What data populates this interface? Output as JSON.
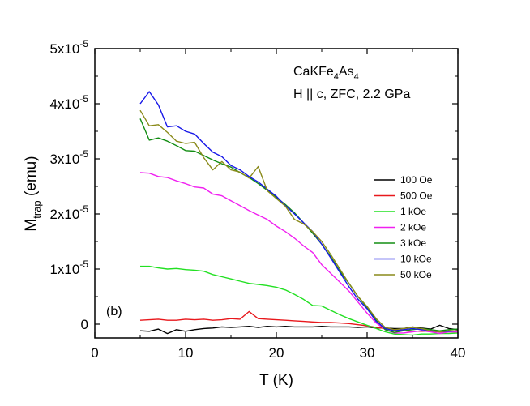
{
  "chart_data": {
    "type": "line",
    "panel_label": "(b)",
    "annotation_lines": [
      {
        "base": "CaKFe",
        "sub1": "4",
        "mid": "As",
        "sub2": "4"
      },
      {
        "text": "H || c, ZFC, 2.2 GPa"
      }
    ],
    "xlabel": "T (K)",
    "ylabel": {
      "main": "M",
      "sub": "trap",
      "rest": " (emu)"
    },
    "xlim": [
      0,
      40
    ],
    "ylim": [
      -2.5e-06,
      5e-05
    ],
    "x_ticks": [
      "0",
      "10",
      "20",
      "30",
      "40"
    ],
    "y_ticks": [
      {
        "value": 0,
        "mantissa": "0",
        "exp": ""
      },
      {
        "value": 1e-05,
        "mantissa": "1x10",
        "exp": "-5"
      },
      {
        "value": 2e-05,
        "mantissa": "2x10",
        "exp": "-5"
      },
      {
        "value": 3e-05,
        "mantissa": "3x10",
        "exp": "-5"
      },
      {
        "value": 4e-05,
        "mantissa": "4x10",
        "exp": "-5"
      },
      {
        "value": 5e-05,
        "mantissa": "5x10",
        "exp": "-5"
      }
    ],
    "legend_position": "center-right",
    "series": [
      {
        "name": "100 Oe",
        "color": "#000000",
        "x": [
          5,
          6,
          7,
          8,
          9,
          10,
          11,
          12,
          13,
          14,
          15,
          16,
          17,
          18,
          19,
          20,
          21,
          22,
          23,
          24,
          25,
          26,
          27,
          28,
          29,
          30,
          31,
          32,
          33,
          34,
          35,
          36,
          37,
          38,
          39,
          40
        ],
        "y": [
          -1.2e-06,
          -1.3e-06,
          -9e-07,
          -1.7e-06,
          -1e-06,
          -1.3e-06,
          -1e-06,
          -8e-07,
          -7e-07,
          -5e-07,
          -6e-07,
          -5e-07,
          -4e-07,
          -6e-07,
          -4e-07,
          -5e-07,
          -4e-07,
          -5e-07,
          -5e-07,
          -5e-07,
          -4e-07,
          -5e-07,
          -5e-07,
          -5e-07,
          -6e-07,
          -5e-07,
          -7e-07,
          -7e-07,
          -8e-07,
          -8e-07,
          -5e-07,
          -7e-07,
          -9e-07,
          -2e-07,
          -8e-07,
          -1e-06
        ]
      },
      {
        "name": "500 Oe",
        "color": "#e8181c",
        "x": [
          5,
          6,
          7,
          8,
          9,
          10,
          11,
          12,
          13,
          14,
          15,
          16,
          17,
          18,
          19,
          20,
          21,
          22,
          23,
          24,
          25,
          26,
          27,
          28,
          29,
          30,
          31,
          32,
          33,
          34,
          35,
          36,
          37,
          38,
          39,
          40
        ],
        "y": [
          7e-07,
          8e-07,
          9e-07,
          7e-07,
          7e-07,
          9e-07,
          8e-07,
          9e-07,
          7e-07,
          8e-07,
          1e-06,
          9e-07,
          2.3e-06,
          1e-06,
          9e-07,
          8e-07,
          7e-07,
          6e-07,
          5e-07,
          4e-07,
          3e-07,
          3e-07,
          2e-07,
          1e-07,
          -1e-07,
          -3e-07,
          -6e-07,
          -8e-07,
          -1e-06,
          -1.2e-06,
          -1.3e-06,
          -1.3e-06,
          -1.3e-06,
          -1.4e-06,
          -1.4e-06,
          -1.4e-06
        ]
      },
      {
        "name": "1 kOe",
        "color": "#22e022",
        "x": [
          5,
          6,
          7,
          8,
          9,
          10,
          11,
          12,
          13,
          14,
          15,
          16,
          17,
          18,
          19,
          20,
          21,
          22,
          23,
          24,
          25,
          26,
          27,
          28,
          29,
          30,
          31,
          32,
          33,
          34,
          35,
          36,
          37,
          38,
          39,
          40
        ],
        "y": [
          1.05e-05,
          1.05e-05,
          1.02e-05,
          1e-05,
          1.01e-05,
          9.9e-06,
          9.8e-06,
          9.6e-06,
          9e-06,
          8.6e-06,
          8.2e-06,
          7.8e-06,
          7.4e-06,
          7.2e-06,
          7e-06,
          6.7e-06,
          6.2e-06,
          5.4e-06,
          4.5e-06,
          3.4e-06,
          3.3e-06,
          2.5e-06,
          1.7e-06,
          1e-06,
          4e-07,
          -2e-07,
          -8e-07,
          -1.4e-06,
          -1.8e-06,
          -1.9e-06,
          -2e-06,
          -1.8e-06,
          -1.8e-06,
          -1.7e-06,
          -1.7e-06,
          -1.6e-06
        ]
      },
      {
        "name": "2 kOe",
        "color": "#f020f0",
        "x": [
          5,
          6,
          7,
          8,
          9,
          10,
          11,
          12,
          13,
          14,
          15,
          16,
          17,
          18,
          19,
          20,
          21,
          22,
          23,
          24,
          25,
          26,
          27,
          28,
          29,
          30,
          31,
          32,
          33,
          34,
          35,
          36,
          37,
          38,
          39,
          40
        ],
        "y": [
          2.75e-05,
          2.74e-05,
          2.68e-05,
          2.66e-05,
          2.6e-05,
          2.55e-05,
          2.49e-05,
          2.47e-05,
          2.36e-05,
          2.33e-05,
          2.24e-05,
          2.15e-05,
          2.06e-05,
          1.98e-05,
          1.9e-05,
          1.78e-05,
          1.68e-05,
          1.56e-05,
          1.42e-05,
          1.3e-05,
          1.08e-05,
          9.2e-06,
          7.6e-06,
          6e-06,
          4e-06,
          2e-06,
          2e-07,
          -1e-06,
          -1.6e-06,
          -1.6e-06,
          -1.4e-06,
          -1.2e-06,
          -1.4e-06,
          -1.7e-06,
          -1.4e-06,
          -1.4e-06
        ]
      },
      {
        "name": "3 kOe",
        "color": "#138d13",
        "x": [
          5,
          6,
          7,
          8,
          9,
          10,
          11,
          12,
          13,
          14,
          15,
          16,
          17,
          18,
          19,
          20,
          21,
          22,
          23,
          24,
          25,
          26,
          27,
          28,
          29,
          30,
          31,
          32,
          33,
          34,
          35,
          36,
          37,
          38,
          39,
          40
        ],
        "y": [
          3.73e-05,
          3.34e-05,
          3.38e-05,
          3.32e-05,
          3.24e-05,
          3.15e-05,
          3.14e-05,
          3.06e-05,
          2.98e-05,
          2.91e-05,
          2.85e-05,
          2.75e-05,
          2.66e-05,
          2.55e-05,
          2.43e-05,
          2.3e-05,
          2.17e-05,
          2.02e-05,
          1.84e-05,
          1.65e-05,
          1.45e-05,
          1.22e-05,
          9.6e-06,
          7.4e-06,
          5e-06,
          3e-06,
          7e-07,
          -1e-06,
          -1.5e-06,
          -1.2e-06,
          -1e-06,
          -8e-07,
          -1e-06,
          -1.2e-06,
          -1e-06,
          -9e-07
        ]
      },
      {
        "name": "10 kOe",
        "color": "#1818e8",
        "x": [
          5,
          6,
          7,
          8,
          9,
          10,
          11,
          12,
          13,
          14,
          15,
          16,
          17,
          18,
          19,
          20,
          21,
          22,
          23,
          24,
          25,
          26,
          27,
          28,
          29,
          30,
          31,
          32,
          33,
          34,
          35,
          36,
          37,
          38,
          39,
          40
        ],
        "y": [
          4e-05,
          4.22e-05,
          3.98e-05,
          3.58e-05,
          3.6e-05,
          3.5e-05,
          3.45e-05,
          3.28e-05,
          3.12e-05,
          3.04e-05,
          2.88e-05,
          2.8e-05,
          2.68e-05,
          2.58e-05,
          2.45e-05,
          2.32e-05,
          2.15e-05,
          2e-05,
          1.84e-05,
          1.68e-05,
          1.45e-05,
          1.2e-05,
          9.4e-06,
          6.8e-06,
          4.5e-06,
          2.8e-06,
          5e-07,
          -8e-07,
          -1.2e-06,
          -1e-06,
          -8e-07,
          -1e-06,
          -1.2e-06,
          -1.4e-06,
          -1.3e-06,
          -1.2e-06
        ]
      },
      {
        "name": "50 kOe",
        "color": "#8a8a1a",
        "x": [
          5,
          6,
          7,
          8,
          9,
          10,
          11,
          12,
          13,
          14,
          15,
          16,
          17,
          18,
          19,
          20,
          21,
          22,
          23,
          24,
          25,
          26,
          27,
          28,
          29,
          30,
          31,
          32,
          33,
          34,
          35,
          36,
          37,
          38,
          39,
          40
        ],
        "y": [
          3.88e-05,
          3.6e-05,
          3.62e-05,
          3.48e-05,
          3.32e-05,
          3.28e-05,
          3.3e-05,
          3.02e-05,
          2.8e-05,
          2.95e-05,
          2.8e-05,
          2.76e-05,
          2.65e-05,
          2.86e-05,
          2.42e-05,
          2.28e-05,
          2.14e-05,
          1.9e-05,
          1.82e-05,
          1.68e-05,
          1.5e-05,
          1.26e-05,
          1e-05,
          7.4e-06,
          5e-06,
          3.2e-06,
          1e-06,
          -6e-07,
          -1e-06,
          -8e-07,
          -6e-07,
          -8e-07,
          -1.2e-06,
          -1.4e-06,
          -1.2e-06,
          -1.2e-06
        ]
      }
    ]
  }
}
